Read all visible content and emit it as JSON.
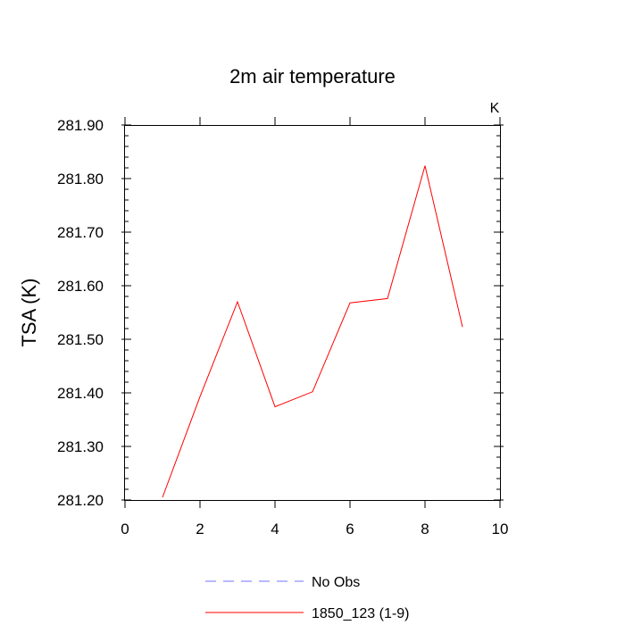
{
  "chart_data": {
    "type": "line",
    "title": "2m air temperature",
    "units_label": "K",
    "ylabel": "TSA  (K)",
    "xlabel": "",
    "xlim": [
      0,
      10
    ],
    "ylim": [
      281.2,
      281.9
    ],
    "x_ticks": [
      0,
      2,
      4,
      6,
      8,
      10
    ],
    "x_tick_labels": [
      "0",
      "2",
      "4",
      "6",
      "8",
      "10"
    ],
    "y_ticks": [
      281.2,
      281.3,
      281.4,
      281.5,
      281.6,
      281.7,
      281.8,
      281.9
    ],
    "y_tick_labels": [
      "281.20",
      "281.30",
      "281.40",
      "281.50",
      "281.60",
      "281.70",
      "281.80",
      "281.90"
    ],
    "grid": false,
    "legend_position": "bottom",
    "series": [
      {
        "name": "No Obs",
        "color": "#7070ff",
        "style": "dashed",
        "x": [],
        "y": []
      },
      {
        "name": "1850_123 (1-9)",
        "color": "#ff0000",
        "style": "solid",
        "x": [
          1,
          2,
          3,
          4,
          5,
          6,
          7,
          8,
          9
        ],
        "y": [
          281.205,
          281.393,
          281.57,
          281.374,
          281.402,
          281.568,
          281.576,
          281.824,
          281.523
        ]
      }
    ]
  }
}
